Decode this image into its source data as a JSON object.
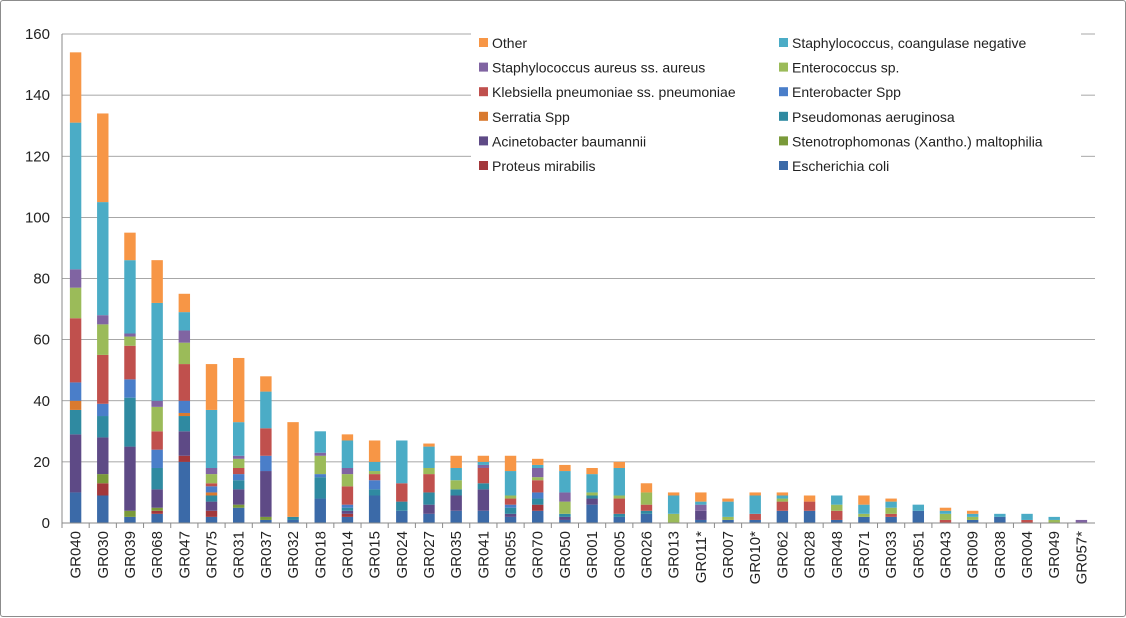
{
  "chart_data": {
    "type": "bar",
    "stacked": true,
    "ylim": [
      0,
      160
    ],
    "yticks": [
      0,
      20,
      40,
      60,
      80,
      100,
      120,
      140,
      160
    ],
    "grid": true,
    "legend_position": "top-right",
    "categories": [
      "GR040",
      "GR030",
      "GR039",
      "GR068",
      "GR047",
      "GR075",
      "GR031",
      "GR037",
      "GR032",
      "GR018",
      "GR014",
      "GR015",
      "GR024",
      "GR027",
      "GR035",
      "GR041",
      "GR055",
      "GR070",
      "GR050",
      "GR001",
      "GR005",
      "GR026",
      "GR013",
      "GR011*",
      "GR007",
      "GR010*",
      "GR062",
      "GR028",
      "GR048",
      "GR071",
      "GR033",
      "GR051",
      "GR043",
      "GR009",
      "GR038",
      "GR004",
      "GR049",
      "GR057*"
    ],
    "series": [
      {
        "name": "Escherichia coli",
        "color": "#3b6aa8",
        "values": [
          10,
          9,
          2,
          3,
          20,
          2,
          5,
          1,
          1,
          8,
          2,
          9,
          4,
          3,
          4,
          4,
          2,
          4,
          1,
          6,
          2,
          3,
          0,
          1,
          1,
          1,
          4,
          4,
          1,
          2,
          2,
          4,
          0,
          1,
          2,
          0,
          0,
          0
        ]
      },
      {
        "name": "Proteus mirabilis",
        "color": "#a3373b",
        "values": [
          0,
          4,
          0,
          1,
          2,
          2,
          0,
          0,
          0,
          0,
          1,
          0,
          0,
          0,
          0,
          0,
          0,
          2,
          0,
          0,
          0,
          0,
          0,
          0,
          0,
          0,
          0,
          0,
          0,
          0,
          0,
          0,
          0,
          0,
          0,
          0,
          0,
          0
        ]
      },
      {
        "name": "Stenotrophomonas (Xantho.) maltophilia",
        "color": "#7a9a3a",
        "values": [
          0,
          3,
          2,
          1,
          0,
          0,
          1,
          1,
          0,
          0,
          0,
          0,
          0,
          0,
          0,
          0,
          0,
          0,
          0,
          0,
          0,
          0,
          0,
          0,
          0,
          0,
          0,
          0,
          0,
          0,
          0,
          0,
          0,
          0,
          0,
          0,
          0,
          0
        ]
      },
      {
        "name": "Acinetobacter baumannii",
        "color": "#5e4a86",
        "values": [
          19,
          12,
          21,
          6,
          8,
          3,
          5,
          15,
          0,
          0,
          1,
          0,
          0,
          3,
          5,
          7,
          1,
          0,
          1,
          2,
          0,
          0,
          0,
          3,
          0,
          0,
          0,
          0,
          0,
          0,
          0,
          0,
          0,
          0,
          0,
          0,
          0,
          0
        ]
      },
      {
        "name": "Pseudomonas aeruginosa",
        "color": "#2f8aa1",
        "values": [
          8,
          7,
          16,
          7,
          5,
          2,
          3,
          0,
          1,
          7,
          1,
          2,
          3,
          4,
          2,
          2,
          2,
          2,
          1,
          1,
          1,
          1,
          0,
          0,
          0,
          0,
          0,
          0,
          0,
          0,
          0,
          0,
          0,
          0,
          0,
          0,
          0,
          0
        ]
      },
      {
        "name": "Serratia Spp",
        "color": "#d97a2f",
        "values": [
          3,
          0,
          0,
          0,
          1,
          1,
          0,
          0,
          0,
          0,
          0,
          0,
          0,
          0,
          0,
          0,
          0,
          0,
          0,
          0,
          0,
          0,
          0,
          0,
          0,
          0,
          0,
          0,
          0,
          0,
          0,
          0,
          0,
          0,
          0,
          0,
          0,
          0
        ]
      },
      {
        "name": "Enterobacter Spp",
        "color": "#4a7ec9",
        "values": [
          6,
          4,
          6,
          6,
          4,
          2,
          2,
          5,
          0,
          1,
          1,
          3,
          0,
          0,
          0,
          0,
          1,
          2,
          0,
          0,
          0,
          0,
          0,
          0,
          0,
          0,
          0,
          0,
          0,
          0,
          0,
          0,
          0,
          0,
          0,
          0,
          0,
          0
        ]
      },
      {
        "name": "Klebsiella pneumoniae ss. pneumoniae",
        "color": "#c0504d",
        "values": [
          21,
          16,
          11,
          6,
          12,
          1,
          2,
          9,
          0,
          0,
          6,
          2,
          6,
          6,
          0,
          5,
          2,
          4,
          0,
          0,
          5,
          2,
          0,
          0,
          0,
          2,
          3,
          3,
          3,
          0,
          1,
          0,
          1,
          0,
          0,
          1,
          0,
          0
        ]
      },
      {
        "name": "Enterococcus sp.",
        "color": "#9bbb59",
        "values": [
          10,
          10,
          3,
          8,
          7,
          3,
          3,
          0,
          0,
          6,
          4,
          1,
          0,
          2,
          3,
          0,
          1,
          1,
          4,
          1,
          1,
          4,
          3,
          0,
          1,
          0,
          1,
          0,
          2,
          1,
          2,
          0,
          2,
          1,
          0,
          0,
          1,
          0
        ]
      },
      {
        "name": "Staphylococcus aureus ss. aureus",
        "color": "#8064a2",
        "values": [
          6,
          3,
          1,
          2,
          4,
          2,
          1,
          0,
          0,
          1,
          2,
          0,
          0,
          0,
          0,
          1,
          0,
          3,
          3,
          0,
          0,
          0,
          0,
          2,
          0,
          0,
          0,
          0,
          0,
          0,
          0,
          0,
          0,
          0,
          0,
          0,
          0,
          1
        ]
      },
      {
        "name": "Staphylococcus, coangulase negative",
        "color": "#4bacc6",
        "values": [
          48,
          37,
          24,
          32,
          6,
          19,
          11,
          12,
          0,
          7,
          9,
          3,
          14,
          7,
          4,
          1,
          8,
          1,
          7,
          6,
          9,
          0,
          6,
          1,
          5,
          6,
          1,
          0,
          3,
          3,
          2,
          2,
          1,
          1,
          1,
          2,
          1,
          0
        ]
      },
      {
        "name": "Other",
        "color": "#f79646",
        "values": [
          23,
          29,
          9,
          14,
          6,
          15,
          21,
          5,
          31,
          0,
          2,
          7,
          0,
          1,
          4,
          2,
          5,
          2,
          2,
          2,
          2,
          3,
          1,
          3,
          1,
          1,
          1,
          2,
          0,
          3,
          1,
          0,
          1,
          1,
          0,
          0,
          0,
          0
        ]
      }
    ],
    "legend_rows": [
      [
        "Other",
        "Staphylococcus, coangulase negative"
      ],
      [
        "Staphylococcus aureus ss. aureus",
        "Enterococcus sp."
      ],
      [
        "Klebsiella pneumoniae ss. pneumoniae",
        "Enterobacter Spp"
      ],
      [
        "Serratia Spp",
        "Pseudomonas aeruginosa"
      ],
      [
        "Acinetobacter baumannii",
        "Stenotrophomonas (Xantho.) maltophilia"
      ],
      [
        "Proteus mirabilis",
        "Escherichia coli"
      ]
    ]
  }
}
